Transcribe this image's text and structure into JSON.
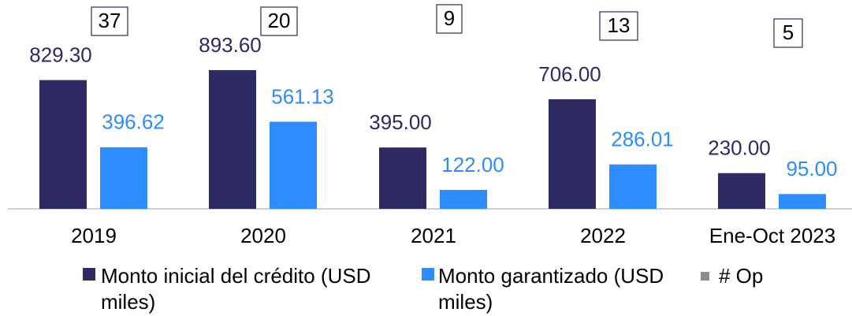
{
  "chart_data": {
    "type": "bar",
    "categories": [
      "2019",
      "2020",
      "2021",
      "2022",
      "Ene-Oct 2023"
    ],
    "series": [
      {
        "name": "Monto inicial del crédito (USD miles)",
        "color": "#2e2a63",
        "values": [
          829.3,
          893.6,
          395,
          706,
          230
        ],
        "value_labels": [
          "829.30",
          "893.60",
          "395.00",
          "706.00",
          "230.00"
        ]
      },
      {
        "name": "Monto garantizado (USD miles)",
        "color": "#2f8cff",
        "values": [
          396.62,
          561.13,
          122,
          286.01,
          95
        ],
        "value_labels": [
          "396.62",
          "561.13",
          "122.00",
          "286.01",
          "95.00"
        ]
      },
      {
        "name": "# Op",
        "color": "#8c8c8c",
        "values": [
          37,
          20,
          9,
          13,
          5
        ]
      }
    ]
  }
}
